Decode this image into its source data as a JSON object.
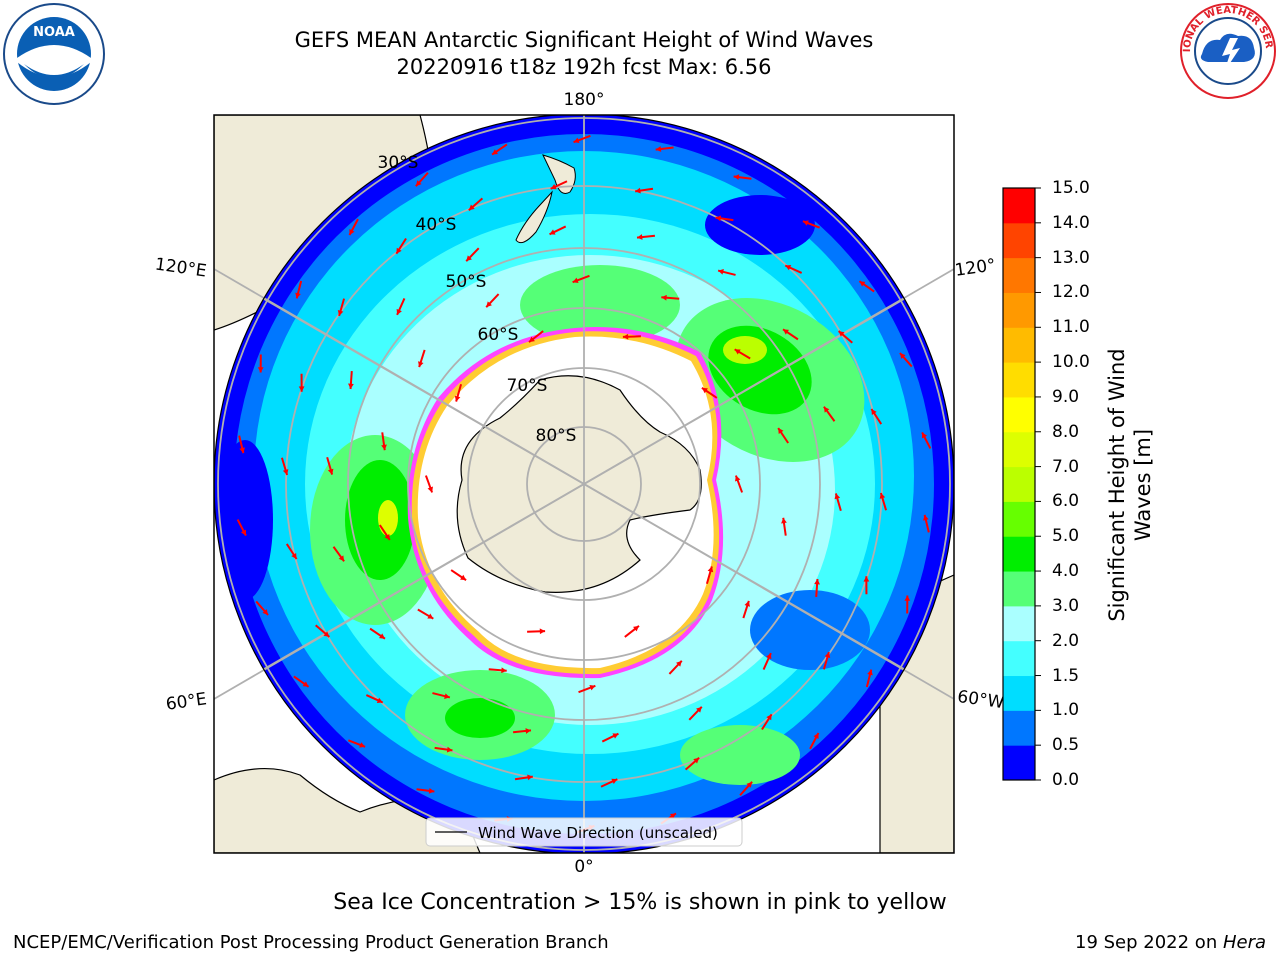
{
  "title": {
    "line1": "GEFS MEAN Antarctic Significant Height of Wind Waves",
    "line2": "20220916 t18z 192h fcst   Max: 6.56"
  },
  "map": {
    "projection": "south-polar-stereographic",
    "longitude_labels": [
      "180°",
      "120°E",
      "120°",
      "60°E",
      "60°W",
      "0°"
    ],
    "latitude_labels": [
      "30°S",
      "40°S",
      "50°S",
      "60°S",
      "70°S",
      "80°S"
    ],
    "legend_label": "Wind Wave Direction (unscaled)",
    "arrow_color": "#ff0000",
    "land_color": "#efebd8",
    "sea_ice_colors": [
      "#ff44ff",
      "#ffcc33"
    ]
  },
  "colorbar": {
    "label_line1": "Significant Height of Wind",
    "label_line2": "Waves [m]",
    "ticks": [
      "0.0",
      "0.5",
      "1.0",
      "1.5",
      "2.0",
      "3.0",
      "4.0",
      "5.0",
      "6.0",
      "7.0",
      "8.0",
      "9.0",
      "10.0",
      "11.0",
      "12.0",
      "13.0",
      "14.0",
      "15.0"
    ],
    "colors": [
      "#0000ff",
      "#0077ff",
      "#00ddff",
      "#44ffff",
      "#aaffff",
      "#55ff77",
      "#00ee00",
      "#66ff00",
      "#bbff00",
      "#ddff00",
      "#ffff00",
      "#ffdd00",
      "#ffbb00",
      "#ff9900",
      "#ff7700",
      "#ff4400",
      "#ff0000"
    ]
  },
  "footnote": "Sea Ice Concentration > 15% is shown in pink to yellow",
  "credit": "NCEP/EMC/Verification Post Processing Product Generation Branch",
  "date": {
    "text": "19 Sep 2022 on ",
    "machine": "Hera"
  },
  "logos": {
    "left": "NOAA",
    "right": "NATIONAL WEATHER SERVICE"
  }
}
